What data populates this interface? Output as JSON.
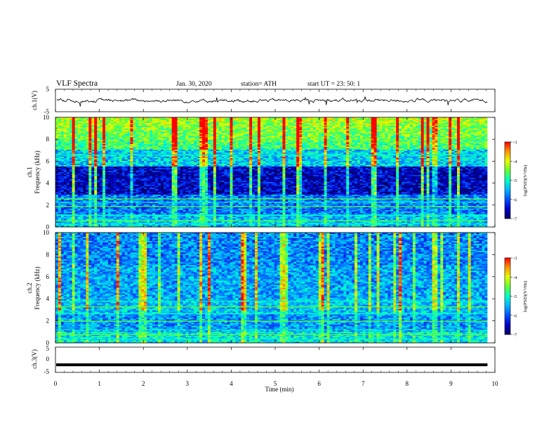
{
  "header": {
    "title": "VLF  Spectra",
    "date": "Jan.  30,  2020",
    "station": "station= ATH",
    "start": "start  UT  =    23: 50: 1"
  },
  "chart_data": {
    "type": "heatmap",
    "xlabel": "Time  (min)",
    "xlim": [
      0,
      10
    ],
    "xticks": [
      "0",
      "1",
      "2",
      "3",
      "4",
      "5",
      "6",
      "7",
      "8",
      "9",
      "10"
    ],
    "panels": [
      {
        "id": "ch1-waveform",
        "type": "line",
        "ylabel": "ch.1(V)",
        "ylim": [
          -5,
          5
        ],
        "yticks": [
          "5",
          "-5"
        ],
        "description_level": 0
      },
      {
        "id": "ch1-spectrogram",
        "type": "heatmap",
        "ylabel_top": "ch.1",
        "ylabel": "Frequency  (kHz)",
        "ylim": [
          0,
          10
        ],
        "yticks": [
          "0",
          "2",
          "4",
          "6",
          "8",
          "10"
        ],
        "colorbar_label": "log(PSD)(V²/Hz)",
        "colorbar_ticks": [
          "-3",
          "-4",
          "-5",
          "-6",
          "-7"
        ],
        "colorbar_range": [
          -7,
          -3
        ]
      },
      {
        "id": "ch2-spectrogram",
        "type": "heatmap",
        "ylabel_top": "ch.2",
        "ylabel": "Frequency  (kHz)",
        "ylim": [
          0,
          10
        ],
        "yticks": [
          "0",
          "2",
          "4",
          "6",
          "8",
          "10"
        ],
        "colorbar_label": "log(PSD)(V²/Hz)",
        "colorbar_ticks": [
          "-3",
          "-4",
          "-5",
          "-6",
          "-7"
        ],
        "colorbar_range": [
          -7,
          -3
        ]
      },
      {
        "id": "ch3-waveform",
        "type": "line",
        "ylabel": "ch.3(V)",
        "ylim": [
          -5,
          5
        ],
        "yticks": [
          "5",
          "0",
          "-5"
        ],
        "description_level": -2
      }
    ],
    "data_end_min": 9.83,
    "colors": {
      "colormap": [
        "#000060",
        "#0000c8",
        "#0050ff",
        "#00b4ff",
        "#00ffc8",
        "#64ff32",
        "#e6ff00",
        "#ff9600",
        "#ff0000"
      ],
      "line": "#000000"
    }
  }
}
